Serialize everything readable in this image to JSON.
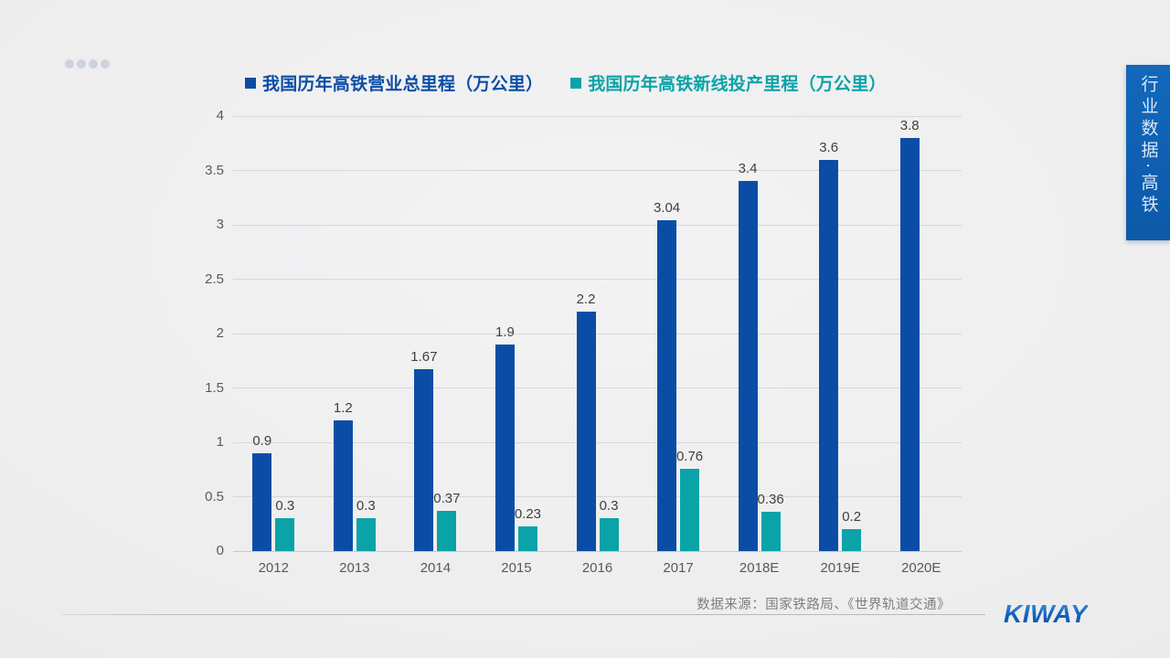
{
  "page": {
    "side_banner": {
      "text": "行业数据·高铁"
    },
    "footer": {
      "source": "数据来源：国家铁路局、《世界轨道交通》",
      "logo": "KIWAY"
    }
  },
  "colors": {
    "series1_blue": "#0b4da6",
    "series2_teal": "#0aa3a8",
    "banner_blue": "#0f62b2",
    "logo_blue": "#1565c0",
    "background_gray": "#ededee"
  },
  "chart_data": {
    "type": "bar",
    "title": "",
    "categories": [
      "2012",
      "2013",
      "2014",
      "2015",
      "2016",
      "2017",
      "2018E",
      "2019E",
      "2020E"
    ],
    "series": [
      {
        "name": "我国历年高铁营业总里程（万公里）",
        "color": "#0b4da6",
        "values": [
          0.9,
          1.2,
          1.67,
          1.9,
          2.2,
          3.04,
          3.4,
          3.6,
          3.8
        ]
      },
      {
        "name": "我国历年高铁新线投产里程（万公里）",
        "color": "#0aa3a8",
        "values": [
          0.3,
          0.3,
          0.37,
          0.23,
          0.3,
          0.76,
          0.36,
          0.2,
          null
        ]
      }
    ],
    "xlabel": "",
    "ylabel": "",
    "ylim": [
      0,
      4
    ],
    "yticks": [
      0,
      0.5,
      1,
      1.5,
      2,
      2.5,
      3,
      3.5,
      4
    ],
    "grid": true,
    "legend_position": "top",
    "data_labels": true,
    "source_note": "数据来源：国家铁路局、《世界轨道交通》"
  }
}
